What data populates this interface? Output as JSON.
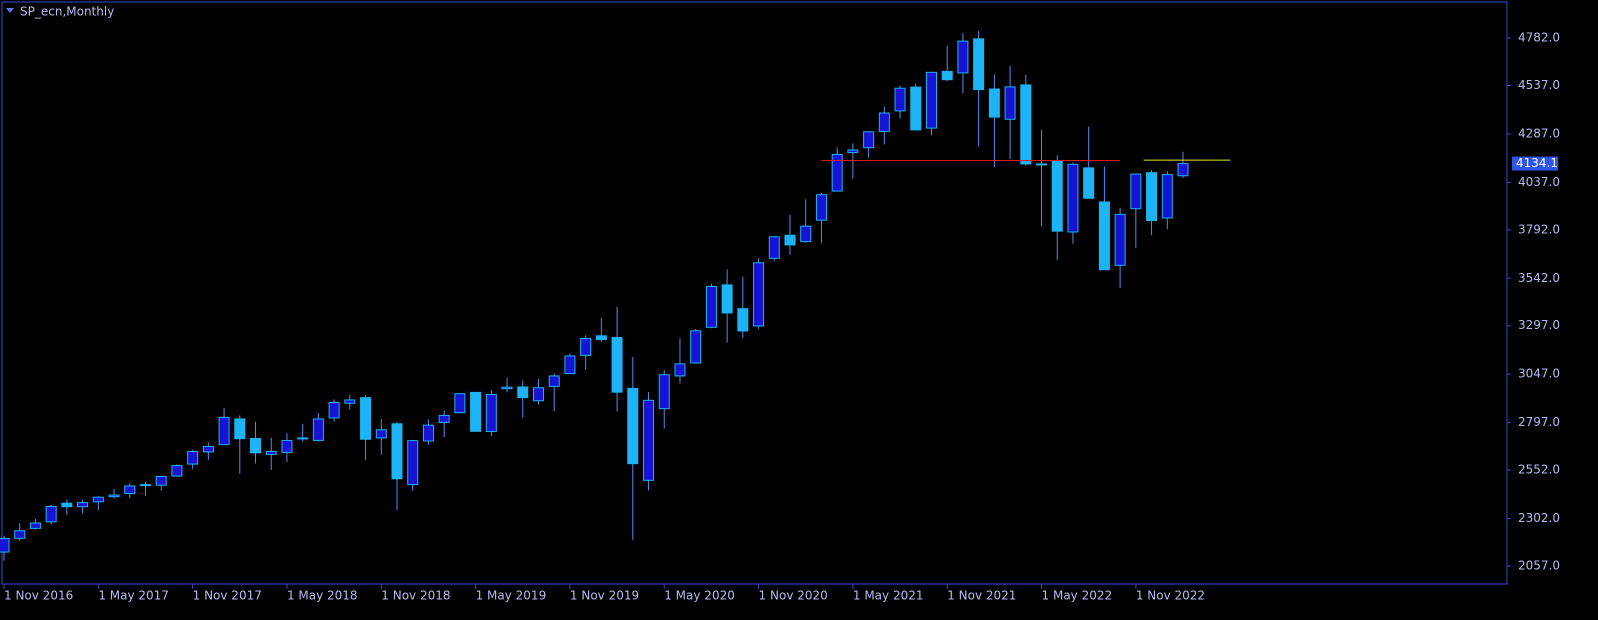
{
  "chart_data": {
    "type": "candlestick",
    "title": "SP_ecn,Monthly",
    "categories": [
      "1 Nov 2016",
      null,
      null,
      null,
      null,
      null,
      "1 May 2017",
      null,
      null,
      null,
      null,
      null,
      "1 Nov 2017",
      null,
      null,
      null,
      null,
      null,
      "1 May 2018",
      null,
      null,
      null,
      null,
      null,
      "1 Nov 2018",
      null,
      null,
      null,
      null,
      null,
      "1 May 2019",
      null,
      null,
      null,
      null,
      null,
      "1 Nov 2019",
      null,
      null,
      null,
      null,
      null,
      "1 May 2020",
      null,
      null,
      null,
      null,
      null,
      "1 Nov 2020",
      null,
      null,
      null,
      null,
      null,
      "1 May 2021",
      null,
      null,
      null,
      null,
      null,
      "1 Nov 2021",
      null,
      null,
      null,
      null,
      null,
      "1 May 2022",
      null,
      null,
      null,
      null,
      null,
      "1 Nov 2022",
      null,
      null,
      null
    ],
    "open": [
      2129,
      2200,
      2251,
      2285,
      2381,
      2363,
      2388,
      2415,
      2431,
      2477,
      2474,
      2521,
      2583,
      2646,
      2683,
      2816,
      2715,
      2633,
      2643,
      2718,
      2705,
      2821,
      2897,
      2926,
      2718,
      2791,
      2477,
      2702,
      2798,
      2848,
      2953,
      2751,
      2972,
      2981,
      2910,
      2984,
      3050,
      3144,
      3245,
      3236,
      2974,
      2499,
      2869,
      3038,
      3105,
      3289,
      3508,
      3385,
      3296,
      3645,
      3764,
      3731,
      3842,
      3992,
      4191,
      4216,
      4300,
      4406,
      4529,
      4317,
      4610,
      4602,
      4778,
      4519,
      4363,
      4540,
      4130,
      4149,
      3781,
      4112,
      3936,
      3609,
      3901,
      4087,
      3853,
      4071
    ],
    "high": [
      2214,
      2278,
      2301,
      2372,
      2400,
      2399,
      2418,
      2454,
      2484,
      2491,
      2519,
      2582,
      2657,
      2695,
      2873,
      2835,
      2801,
      2718,
      2742,
      2791,
      2848,
      2917,
      2941,
      2940,
      2815,
      2800,
      2708,
      2813,
      2860,
      2949,
      2954,
      2964,
      3028,
      3014,
      3022,
      3050,
      3154,
      3248,
      3338,
      3394,
      3136,
      2955,
      3068,
      3233,
      3280,
      3514,
      3588,
      3550,
      3646,
      3760,
      3870,
      3950,
      3983,
      4218,
      4238,
      4302,
      4429,
      4537,
      4546,
      4608,
      4743,
      4808,
      4818,
      4595,
      4637,
      4593,
      4307,
      4177,
      4140,
      4325,
      4119,
      3906,
      4080,
      4101,
      4095,
      4195
    ],
    "low": [
      2084,
      2187,
      2245,
      2271,
      2322,
      2329,
      2345,
      2405,
      2407,
      2418,
      2446,
      2520,
      2557,
      2605,
      2683,
      2533,
      2586,
      2553,
      2594,
      2698,
      2699,
      2803,
      2864,
      2604,
      2631,
      2346,
      2444,
      2681,
      2722,
      2848,
      2751,
      2728,
      2953,
      2822,
      2891,
      2856,
      3050,
      3070,
      3214,
      2855,
      2192,
      2447,
      2766,
      2999,
      3101,
      3284,
      3210,
      3234,
      3280,
      3633,
      3663,
      3725,
      3723,
      3992,
      4056,
      4164,
      4233,
      4367,
      4306,
      4279,
      4560,
      4495,
      4222,
      4115,
      4157,
      4124,
      3811,
      3637,
      3721,
      3955,
      3585,
      3492,
      3699,
      3764,
      3795,
      4060
    ],
    "close": [
      2199,
      2239,
      2279,
      2364,
      2363,
      2384,
      2412,
      2423,
      2470,
      2472,
      2519,
      2575,
      2648,
      2674,
      2824,
      2714,
      2641,
      2648,
      2705,
      2718,
      2816,
      2901,
      2914,
      2711,
      2760,
      2507,
      2704,
      2784,
      2834,
      2946,
      2752,
      2942,
      2980,
      2926,
      2977,
      3038,
      3141,
      3231,
      3226,
      2954,
      2585,
      2912,
      3044,
      3100,
      3271,
      3500,
      3363,
      3270,
      3622,
      3756,
      3714,
      3811,
      3973,
      4181,
      4204,
      4298,
      4395,
      4523,
      4308,
      4605,
      4567,
      4766,
      4516,
      4374,
      4530,
      4132,
      4132,
      3785,
      4130,
      3955,
      3586,
      3872,
      4080,
      3840,
      4077,
      4134.1
    ],
    "up_color": "#1414d2",
    "down_color": "#1cb4f4",
    "wick_color": "#4f8ef0",
    "ylim": [
      1964,
      4968
    ],
    "yticks": [
      {
        "value": 2057,
        "label": "2057.0"
      },
      {
        "value": 2302,
        "label": "2302.0"
      },
      {
        "value": 2552,
        "label": "2552.0"
      },
      {
        "value": 2797,
        "label": "2797.0"
      },
      {
        "value": 3047,
        "label": "3047.0"
      },
      {
        "value": 3297,
        "label": "3297.0"
      },
      {
        "value": 3542,
        "label": "3542.0"
      },
      {
        "value": 3792,
        "label": "3792.0"
      },
      {
        "value": 4037,
        "label": "4037.0"
      },
      {
        "value": 4287,
        "label": "4287.0"
      },
      {
        "value": 4537,
        "label": "4537.0"
      },
      {
        "value": 4782,
        "label": "4782.0"
      }
    ],
    "last_price": 4134.1,
    "hlines": [
      {
        "value": 4150,
        "color": "#e01818",
        "from": 52,
        "to": 71
      },
      {
        "value": 4152,
        "color": "#e8e820",
        "from": 72.5,
        "to": 78
      }
    ]
  }
}
